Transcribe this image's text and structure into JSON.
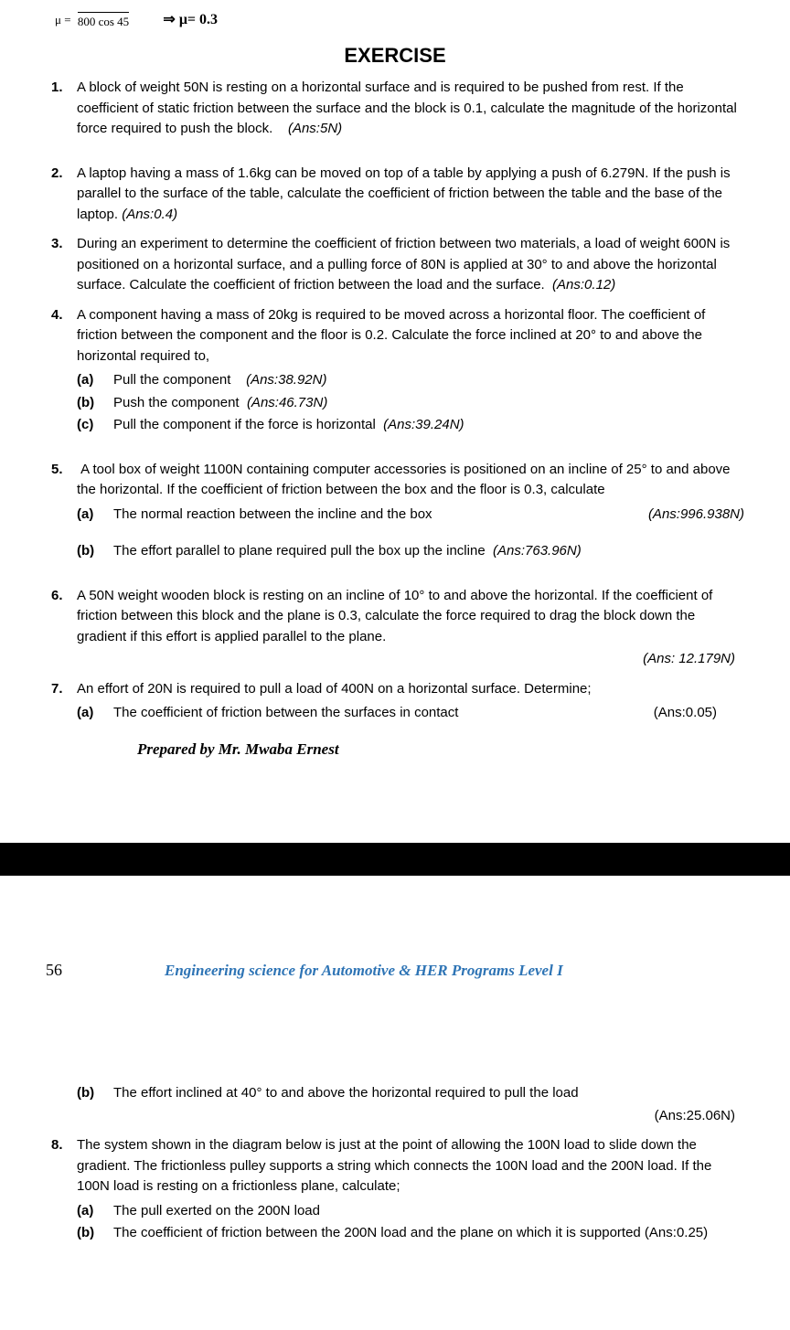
{
  "top_formula": {
    "denominator": "800 cos 45",
    "arrow_result": "⇒ μ= 0.3",
    "mu_prefix": "μ ="
  },
  "heading": "EXERCISE",
  "problems": [
    {
      "num": "1.",
      "text": "A block of weight 50N is resting on a horizontal surface and is required to be pushed from rest. If the coefficient of static friction between the surface and the block is 0.1, calculate the magnitude of the horizontal force required to push the block.",
      "ans_inline": "(Ans:5N)"
    },
    {
      "num": "2.",
      "text": "A laptop having a mass of 1.6kg can be moved on top of a table by applying a push of 6.279N. If the push is parallel to the surface of the table, calculate the coefficient of friction between the table and the base of the laptop.",
      "ans_inline": "(Ans:0.4)"
    },
    {
      "num": "3.",
      "text": "During an experiment to determine the coefficient of friction between two materials, a load of weight 600N is positioned on a horizontal surface, and a pulling force of 80N is applied at 30° to and above the horizontal surface. Calculate the coefficient of friction between the load and the surface.",
      "ans_inline": "(Ans:0.12)"
    },
    {
      "num": "4.",
      "text": "A component having a mass of 20kg is required to be moved across a horizontal floor. The coefficient of friction between the component and the floor is 0.2. Calculate the force inclined at 20° to and above the horizontal required to,",
      "parts": [
        {
          "lbl": "(a)",
          "t": "Pull the component",
          "ans": "(Ans:38.92N)"
        },
        {
          "lbl": "(b)",
          "t": "Push the component",
          "ans": "(Ans:46.73N)"
        },
        {
          "lbl": "(c)",
          "t": "Pull the component if the force is horizontal",
          "ans": "(Ans:39.24N)"
        }
      ]
    },
    {
      "num": "5.",
      "text": "A tool box of weight 1100N containing computer accessories is positioned on an incline of 25° to and above the horizontal. If the coefficient of friction between the box and the floor is 0.3, calculate",
      "parts5": [
        {
          "lbl": "(a)",
          "t": "The normal reaction between the incline and the box",
          "ans": "(Ans:996.938N)"
        },
        {
          "lbl": "(b)",
          "t": "The effort parallel to plane required  pull the box up the incline",
          "ans": "(Ans:763.96N)"
        }
      ]
    },
    {
      "num": "6.",
      "text": "A 50N weight wooden block is resting on an incline of 10° to and above the horizontal. If the coefficient of friction between this block and the plane is 0.3, calculate the force required to drag the block down the gradient if this effort is applied parallel to the plane.",
      "ans_right": "(Ans: 12.179N)"
    },
    {
      "num": "7.",
      "text": "An effort of 20N is required to pull a load of 400N on a horizontal surface. Determine;",
      "part7a_lbl": "(a)",
      "part7a_t": "The coefficient of friction between the surfaces in contact",
      "part7a_ans": "(Ans:0.05)"
    }
  ],
  "prepared": "Prepared by Mr. Mwaba Ernest",
  "page_num": "56",
  "doc_title": "Engineering science for Automotive & HER Programs Level I",
  "page2": {
    "p7b_lbl": "(b)",
    "p7b_t": "The effort inclined at 40° to and above the horizontal required to pull the load",
    "p7b_ans": "(Ans:25.06N)",
    "p8_num": "8.",
    "p8_text": "The system shown in the diagram below is just at the point of allowing the 100N load to slide down the gradient. The frictionless pulley supports a string which connects the 100N load and the 200N load. If the 100N load is resting on a frictionless plane, calculate;",
    "p8a_lbl": "(a)",
    "p8a_t": "The pull exerted on the 200N load",
    "p8b_lbl": "(b)",
    "p8b_t": "The coefficient of friction between the 200N load and the plane on which it is supported (Ans:0.25)"
  }
}
